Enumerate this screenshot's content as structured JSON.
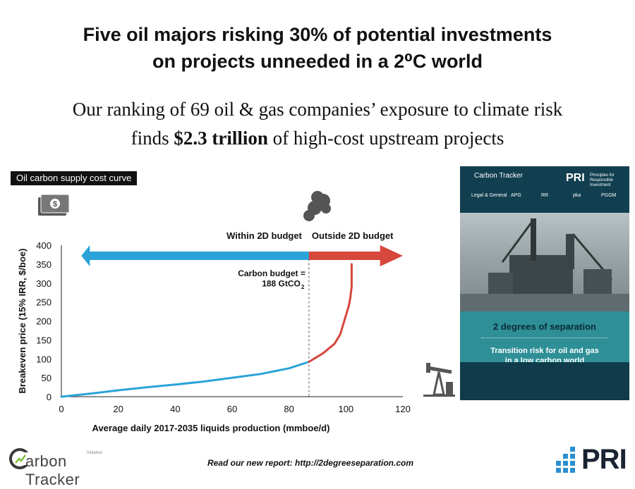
{
  "header": {
    "title_line1": "Five oil majors risking 30% of potential investments",
    "title_line2": "on projects unneeded in a 2⁰C world",
    "subtitle_line1": "Our ranking of 69 oil & gas companies’ exposure to climate risk",
    "subtitle_pre": "finds ",
    "subtitle_bold": "$2.3 trillion",
    "subtitle_post": " of high-cost upstream projects"
  },
  "chart_tag": "Oil carbon supply cost curve",
  "chart_data": {
    "type": "line",
    "xlabel": "Average daily 2017-2035 liquids production (mmboe/d)",
    "ylabel": "Breakeven price (15% IRR, $/boe)",
    "xlim": [
      0,
      120
    ],
    "ylim": [
      0,
      400
    ],
    "xticks": [
      0,
      20,
      40,
      60,
      80,
      100,
      120
    ],
    "yticks": [
      0,
      50,
      100,
      150,
      200,
      250,
      300,
      350,
      400
    ],
    "budget_x": 87,
    "budget_label_line1": "Carbon budget =",
    "budget_label_line2": "188 GtCO",
    "budget_label_sub": "2",
    "within_label": "Within 2D budget",
    "outside_label": "Outside 2D budget",
    "series": [
      {
        "segment": "within",
        "color": "#2aa3d8",
        "x": [
          0,
          10,
          20,
          30,
          40,
          50,
          60,
          70,
          80,
          87
        ],
        "y": [
          0,
          8,
          17,
          25,
          32,
          40,
          50,
          60,
          75,
          92
        ]
      },
      {
        "segment": "outside",
        "color": "#d6473c",
        "x": [
          87,
          92,
          96,
          98,
          99,
          100,
          101,
          101.5,
          102,
          102,
          102
        ],
        "y": [
          92,
          115,
          140,
          165,
          190,
          215,
          240,
          260,
          290,
          320,
          350
        ]
      }
    ]
  },
  "report": {
    "org": "Carbon Tracker",
    "pri": "PRI",
    "pri_sub": "Principles for Responsible Investment",
    "partner1": "Legal & General",
    "partner2": "APG",
    "partner3": "RR",
    "partner4": "pka",
    "partner5": "PGGM",
    "title": "2 degrees of separation",
    "subtitle_line1": "Transition risk for oil and gas",
    "subtitle_line2": "in a low carbon world"
  },
  "footer": {
    "link_text": "Read our new report: http://2degreeseparation.com",
    "ct_logo_text": "arbon Tracker",
    "ct_logo_sup": "Initiative",
    "pri_logo_text": "PRI"
  },
  "colors": {
    "within": "#2aa3d8",
    "outside": "#d6473c",
    "report_band": "#2e8f97"
  }
}
